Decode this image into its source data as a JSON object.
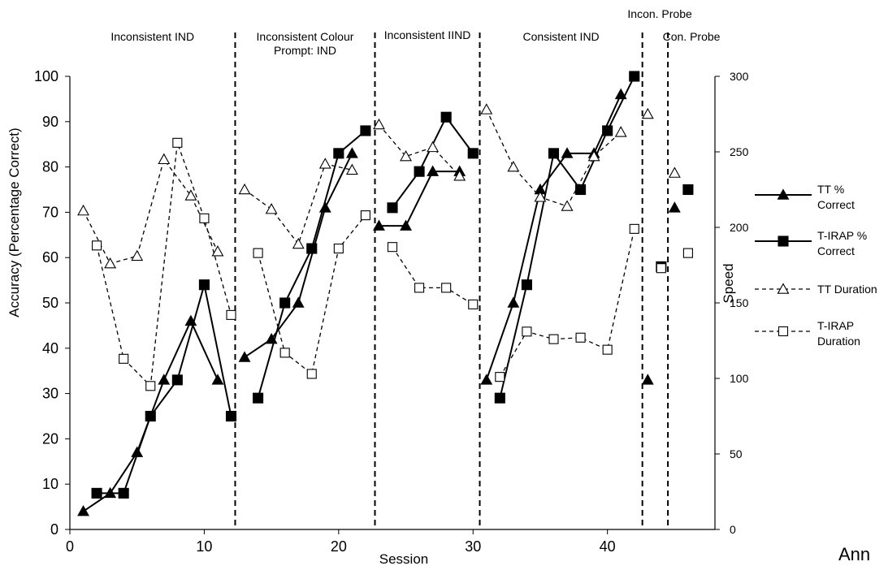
{
  "chart_data": {
    "type": "line",
    "xlabel": "Session",
    "ylabel": "Accuracy (Percentage Correct)",
    "y2label": "Speed",
    "xlim": [
      0,
      48
    ],
    "ylim": [
      0,
      100
    ],
    "y2lim": [
      0,
      300
    ],
    "x_ticks": [
      0,
      10,
      20,
      30,
      40
    ],
    "y_ticks": [
      0,
      10,
      20,
      30,
      40,
      50,
      60,
      70,
      80,
      90,
      100
    ],
    "y2_ticks": [
      0,
      50,
      100,
      150,
      200,
      250,
      300
    ],
    "grid": false,
    "legend_position": "right",
    "phases": [
      {
        "label_lines": [
          "Inconsistent IND"
        ],
        "boundary_after": 12.3
      },
      {
        "label_lines": [
          "Inconsistent Colour",
          "Prompt: IND"
        ],
        "boundary_after": 22.7
      },
      {
        "label_lines": [
          "Inconsistent IIND"
        ],
        "boundary_after": 30.5
      },
      {
        "label_lines": [
          "Consistent IND"
        ],
        "boundary_after": 42.6
      },
      {
        "label_lines": [
          "Incon. Probe"
        ],
        "boundary_after": 44.5
      },
      {
        "label_lines": [
          "Con. Probe"
        ],
        "boundary_after": null
      }
    ],
    "series": [
      {
        "name": "TT % Correct",
        "legend_lines": [
          "TT %",
          "Correct"
        ],
        "axis": "left",
        "marker": "triangle-filled",
        "line": "solid",
        "segments": [
          [
            [
              1,
              4
            ],
            [
              3,
              8
            ],
            [
              5,
              17
            ],
            [
              7,
              33
            ],
            [
              9,
              46
            ],
            [
              11,
              33
            ]
          ],
          [
            [
              13,
              38
            ],
            [
              15,
              42
            ],
            [
              17,
              50
            ],
            [
              19,
              71
            ],
            [
              21,
              83
            ]
          ],
          [
            [
              23,
              67
            ],
            [
              25,
              67
            ],
            [
              27,
              79
            ],
            [
              29,
              79
            ]
          ],
          [
            [
              31,
              33
            ],
            [
              33,
              50
            ],
            [
              35,
              75
            ],
            [
              37,
              83
            ],
            [
              39,
              83
            ],
            [
              41,
              96
            ]
          ],
          [
            [
              43,
              33
            ]
          ],
          [
            [
              45,
              71
            ]
          ]
        ]
      },
      {
        "name": "T-IRAP % Correct",
        "legend_lines": [
          "T-IRAP %",
          "Correct"
        ],
        "axis": "left",
        "marker": "square-filled",
        "line": "solid",
        "segments": [
          [
            [
              2,
              8
            ],
            [
              4,
              8
            ],
            [
              6,
              25
            ],
            [
              8,
              33
            ],
            [
              10,
              54
            ],
            [
              12,
              25
            ]
          ],
          [
            [
              14,
              29
            ],
            [
              16,
              50
            ],
            [
              18,
              62
            ],
            [
              20,
              83
            ],
            [
              22,
              88
            ]
          ],
          [
            [
              24,
              71
            ],
            [
              26,
              79
            ],
            [
              28,
              91
            ],
            [
              30,
              83
            ]
          ],
          [
            [
              32,
              29
            ],
            [
              34,
              54
            ],
            [
              36,
              83
            ],
            [
              38,
              75
            ],
            [
              40,
              88
            ],
            [
              42,
              100
            ]
          ],
          [
            [
              44,
              58
            ]
          ],
          [
            [
              46,
              75
            ]
          ]
        ]
      },
      {
        "name": "TT Duration",
        "legend_lines": [
          "TT Duration"
        ],
        "axis": "right",
        "marker": "triangle-open",
        "line": "dashed",
        "segments": [
          [
            [
              1,
              211
            ],
            [
              3,
              176
            ],
            [
              5,
              181
            ],
            [
              7,
              245
            ],
            [
              9,
              221
            ],
            [
              11,
              184
            ]
          ],
          [
            [
              13,
              225
            ],
            [
              15,
              212
            ],
            [
              17,
              189
            ],
            [
              19,
              242
            ],
            [
              21,
              238
            ]
          ],
          [
            [
              23,
              268
            ],
            [
              25,
              247
            ],
            [
              27,
              253
            ],
            [
              29,
              234
            ]
          ],
          [
            [
              31,
              278
            ],
            [
              33,
              240
            ],
            [
              35,
              220
            ],
            [
              37,
              214
            ],
            [
              39,
              247
            ],
            [
              41,
              263
            ]
          ],
          [
            [
              43,
              275
            ]
          ],
          [
            [
              45,
              236
            ]
          ]
        ]
      },
      {
        "name": "T-IRAP Duration",
        "legend_lines": [
          "T-IRAP",
          "Duration"
        ],
        "axis": "right",
        "marker": "square-open",
        "line": "dashed",
        "segments": [
          [
            [
              2,
              188
            ],
            [
              4,
              113
            ],
            [
              6,
              95
            ],
            [
              8,
              256
            ],
            [
              10,
              206
            ],
            [
              12,
              142
            ]
          ],
          [
            [
              14,
              183
            ],
            [
              16,
              117
            ],
            [
              18,
              103
            ],
            [
              20,
              186
            ],
            [
              22,
              208
            ]
          ],
          [
            [
              24,
              187
            ],
            [
              26,
              160
            ],
            [
              28,
              160
            ],
            [
              30,
              149
            ]
          ],
          [
            [
              32,
              101
            ],
            [
              34,
              131
            ],
            [
              36,
              126
            ],
            [
              38,
              127
            ],
            [
              40,
              119
            ],
            [
              42,
              199
            ]
          ],
          [
            [
              44,
              173
            ]
          ],
          [
            [
              46,
              183
            ]
          ]
        ]
      }
    ]
  },
  "corner_note": "Ann"
}
